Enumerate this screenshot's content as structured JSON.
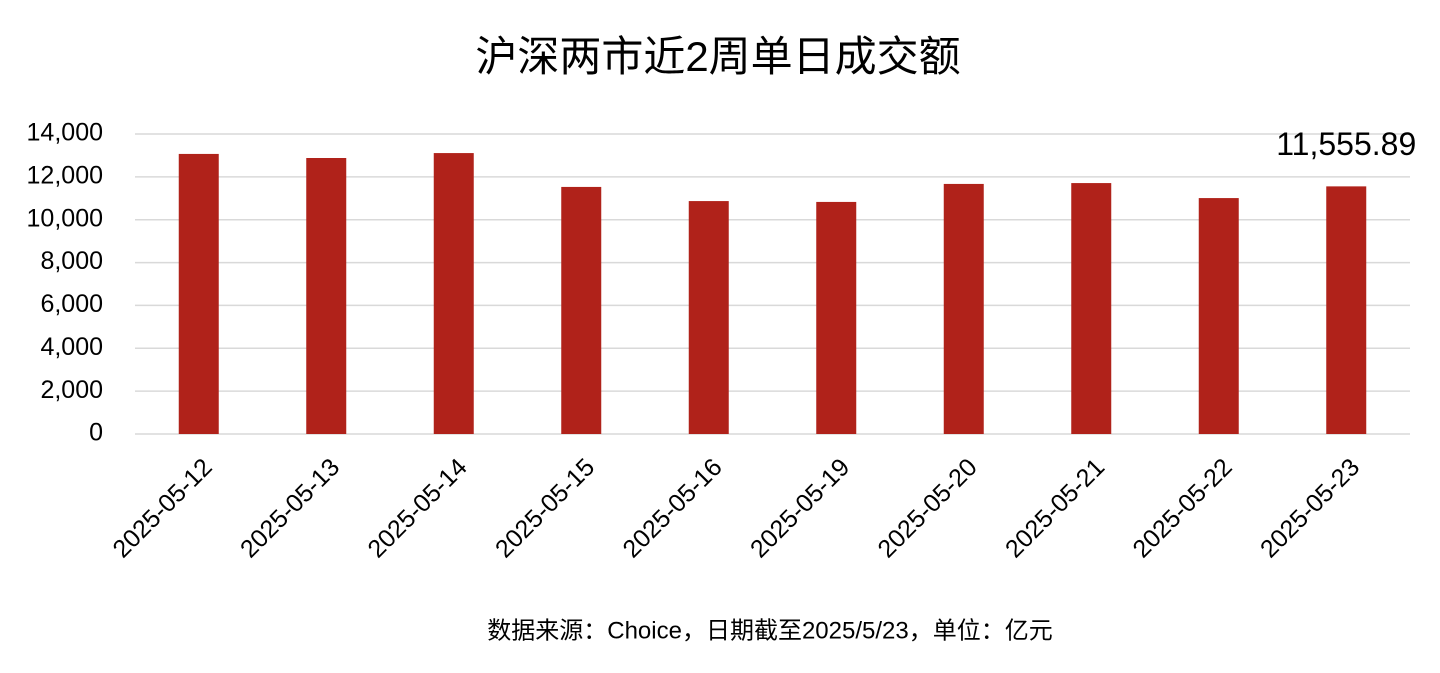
{
  "chart_data": {
    "type": "bar",
    "title": "沪深两市近2周单日成交额",
    "source": "数据来源：Choice，日期截至2025/5/23，单位：亿元",
    "categories": [
      "2025-05-12",
      "2025-05-13",
      "2025-05-14",
      "2025-05-15",
      "2025-05-16",
      "2025-05-19",
      "2025-05-20",
      "2025-05-21",
      "2025-05-22",
      "2025-05-23"
    ],
    "values": [
      13070,
      12880,
      13110,
      11530,
      10870,
      10830,
      11670,
      11710,
      11010,
      11555.89
    ],
    "value_labels": [
      null,
      null,
      null,
      null,
      null,
      null,
      null,
      null,
      null,
      "11,555.89"
    ],
    "color": "#b0221a",
    "ylim": [
      0,
      14000
    ],
    "yticks": [
      0,
      {
        "value": 2000,
        "label": "2,000"
      },
      {
        "value": 4000,
        "label": "4,000"
      },
      {
        "value": 6000,
        "label": "6,000"
      },
      {
        "value": 8000,
        "label": "8,000"
      },
      {
        "value": 10000,
        "label": "10,000"
      },
      {
        "value": 12000,
        "label": "12,000"
      },
      {
        "value": 14000,
        "label": "14,000"
      }
    ],
    "grid": true
  }
}
